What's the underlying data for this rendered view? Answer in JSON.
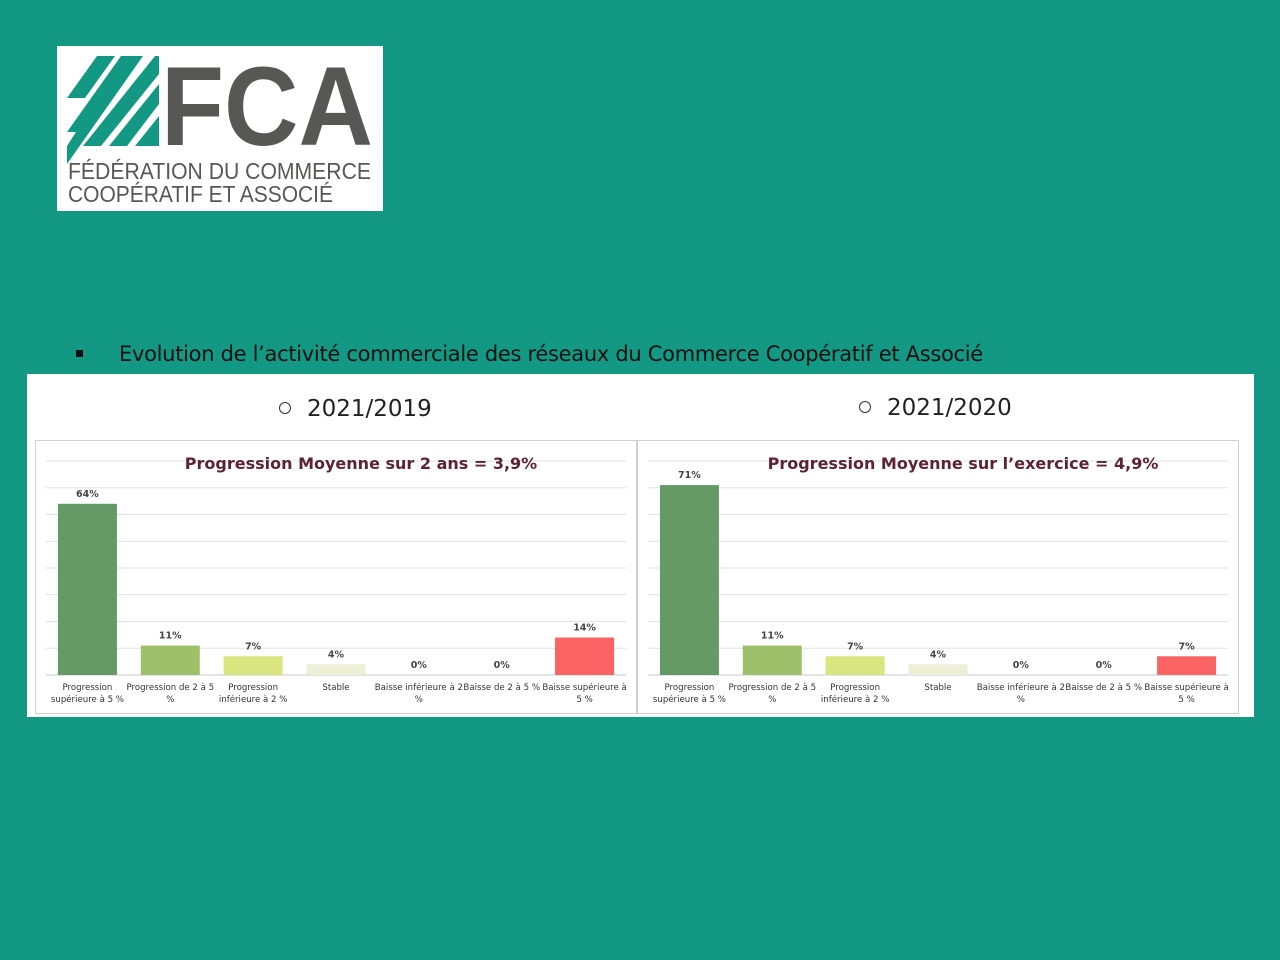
{
  "logo": {
    "name": "FCA",
    "line1": "FÉDÉRATION DU COMMERCE",
    "line2": "COOPÉRATIF ET ASSOCIÉ",
    "colors": {
      "stripes": "#139883",
      "letters": "#575756"
    }
  },
  "bullet": {
    "text": "Evolution de l’activité commerciale des réseaux du Commerce Coopératif et Associé"
  },
  "colors": {
    "background": "#139883",
    "title": "#5b2333"
  },
  "chart_data": [
    {
      "type": "bar",
      "period": "2021/2019",
      "title": "Progression Moyenne sur 2 ans = 3,9%",
      "categories": [
        [
          "Progression",
          "supérieure à 5 %"
        ],
        [
          "Progression de 2 à 5",
          "%"
        ],
        [
          "Progression",
          "inférieure à 2 %"
        ],
        [
          "Stable"
        ],
        [
          "Baisse inférieure à 2",
          "%"
        ],
        [
          "Baisse de 2 à 5 %"
        ],
        [
          "Baisse supérieure à",
          "5 %"
        ]
      ],
      "values": [
        64,
        11,
        7,
        4,
        0,
        0,
        14
      ],
      "value_labels": [
        "64%",
        "11%",
        "7%",
        "4%",
        "0%",
        "0%",
        "14%"
      ],
      "bar_colors": [
        "#659966",
        "#9fc06a",
        "#d9e57e",
        "#ecefd6",
        "#d9e57e",
        "#ecefd6",
        "#fb6464"
      ],
      "ylim": [
        0,
        80
      ],
      "grid": true,
      "legend": "none"
    },
    {
      "type": "bar",
      "period": "2021/2020",
      "title": "Progression Moyenne sur l’exercice = 4,9%",
      "categories": [
        [
          "Progression",
          "supérieure à 5 %"
        ],
        [
          "Progression de 2 à 5",
          "%"
        ],
        [
          "Progression",
          "inférieure à 2 %"
        ],
        [
          "Stable"
        ],
        [
          "Baisse inférieure à 2",
          "%"
        ],
        [
          "Baisse de 2 à 5 %"
        ],
        [
          "Baisse supérieure à",
          "5 %"
        ]
      ],
      "values": [
        71,
        11,
        7,
        4,
        0,
        0,
        7
      ],
      "value_labels": [
        "71%",
        "11%",
        "7%",
        "4%",
        "0%",
        "0%",
        "7%"
      ],
      "bar_colors": [
        "#659966",
        "#9fc06a",
        "#d9e57e",
        "#ecefd6",
        "#d9e57e",
        "#ecefd6",
        "#fb6464"
      ],
      "ylim": [
        0,
        80
      ],
      "grid": true,
      "legend": "none"
    }
  ]
}
